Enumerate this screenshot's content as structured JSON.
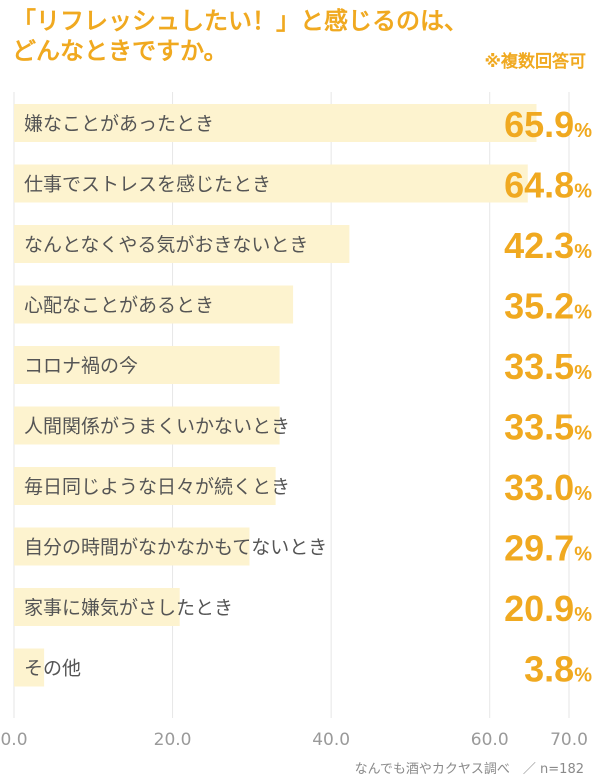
{
  "title": "「リフレッシュしたい！」と感じるのは、\nどんなときですか。",
  "note": "※複数回答可",
  "source": "なんでも酒やカクヤス調べ　／ n=182",
  "colors": {
    "accent": "#f0a920",
    "bar": "#fdf3cf",
    "grid": "#e6e6e6",
    "label": "#555555",
    "tick": "#9a9a9a"
  },
  "chart_data": {
    "type": "bar",
    "orientation": "horizontal",
    "categories": [
      "嫌なことがあったとき",
      "仕事でストレスを感じたとき",
      "なんとなくやる気がおきないとき",
      "心配なことがあるとき",
      "コロナ禍の今",
      "人間関係がうまくいかないとき",
      "毎日同じような日々が続くとき",
      "自分の時間がなかなかもてないとき",
      "家事に嫌気がさしたとき",
      "その他"
    ],
    "values": [
      65.9,
      64.8,
      42.3,
      35.2,
      33.5,
      33.5,
      33.0,
      29.7,
      20.9,
      3.8
    ],
    "unit": "%",
    "xlim": [
      0,
      70
    ],
    "xticks": [
      "0.0",
      "20.0",
      "40.0",
      "60.0",
      "70.0"
    ],
    "xtick_values": [
      0,
      20,
      40,
      60,
      70
    ],
    "grid": true
  }
}
